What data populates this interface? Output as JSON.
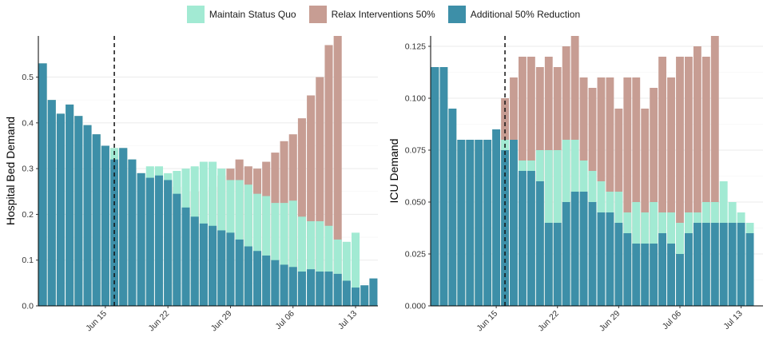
{
  "legend": [
    {
      "label": "Maintain Status Quo",
      "color": "#a2ead3"
    },
    {
      "label": "Relax Interventions 50%",
      "color": "#c79d93"
    },
    {
      "label": "Additional 50% Reduction",
      "color": "#3d8fa8"
    }
  ],
  "chart_data": [
    {
      "type": "bar",
      "ylabel": "Hospital Bed Demand",
      "ylim": [
        0,
        0.59
      ],
      "yticks": [
        0.0,
        0.1,
        0.2,
        0.3,
        0.4,
        0.5
      ],
      "ytick_labels": [
        "0.0",
        "0.1",
        "0.2",
        "0.3",
        "0.4",
        "0.5"
      ],
      "x_start": "Jun 08",
      "xticks": [
        {
          "index": 7,
          "label": "Jun 15"
        },
        {
          "index": 14,
          "label": "Jun 22"
        },
        {
          "index": 21,
          "label": "Jun 29"
        },
        {
          "index": 28,
          "label": "Jul 06"
        },
        {
          "index": 35,
          "label": "Jul 13"
        }
      ],
      "intervention_index": 8,
      "series": [
        {
          "name": "Relax Interventions 50%",
          "values": [
            0.53,
            0.45,
            0.42,
            0.44,
            0.415,
            0.395,
            0.375,
            0.35,
            0.345,
            0.345,
            0.32,
            0.29,
            0.28,
            0.285,
            0.275,
            0.26,
            0.25,
            0.25,
            0.25,
            0.26,
            0.285,
            0.3,
            0.32,
            0.305,
            0.3,
            0.315,
            0.335,
            0.36,
            0.375,
            0.41,
            0.46,
            0.5,
            0.57,
            0.59
          ]
        },
        {
          "name": "Maintain Status Quo",
          "values": [
            0.53,
            0.45,
            0.42,
            0.44,
            0.415,
            0.395,
            0.375,
            0.35,
            0.345,
            0.345,
            0.32,
            0.29,
            0.305,
            0.305,
            0.29,
            0.295,
            0.3,
            0.305,
            0.315,
            0.315,
            0.3,
            0.275,
            0.275,
            0.265,
            0.245,
            0.24,
            0.225,
            0.225,
            0.23,
            0.195,
            0.185,
            0.185,
            0.175,
            0.145,
            0.14,
            0.16
          ]
        },
        {
          "name": "Additional 50% Reduction",
          "values": [
            0.53,
            0.45,
            0.42,
            0.44,
            0.415,
            0.395,
            0.375,
            0.35,
            0.32,
            0.345,
            0.32,
            0.29,
            0.28,
            0.285,
            0.275,
            0.245,
            0.215,
            0.195,
            0.18,
            0.175,
            0.165,
            0.16,
            0.145,
            0.13,
            0.12,
            0.11,
            0.1,
            0.09,
            0.085,
            0.075,
            0.08,
            0.075,
            0.075,
            0.07,
            0.055,
            0.04,
            0.045,
            0.06
          ]
        }
      ]
    },
    {
      "type": "bar",
      "ylabel": "ICU Demand",
      "ylim": [
        0,
        0.13
      ],
      "yticks": [
        0.0,
        0.025,
        0.05,
        0.075,
        0.1,
        0.125
      ],
      "ytick_labels": [
        "0.000",
        "0.025",
        "0.050",
        "0.075",
        "0.100",
        "0.125"
      ],
      "x_start": "Jun 08",
      "xticks": [
        {
          "index": 7,
          "label": "Jun 15"
        },
        {
          "index": 14,
          "label": "Jun 22"
        },
        {
          "index": 21,
          "label": "Jun 29"
        },
        {
          "index": 28,
          "label": "Jul 06"
        },
        {
          "index": 35,
          "label": "Jul 13"
        }
      ],
      "intervention_index": 8,
      "series": [
        {
          "name": "Relax Interventions 50%",
          "values": [
            0.115,
            0.115,
            0.095,
            0.08,
            0.08,
            0.08,
            0.08,
            0.085,
            0.1,
            0.11,
            0.12,
            0.12,
            0.115,
            0.12,
            0.115,
            0.125,
            0.13,
            0.11,
            0.105,
            0.11,
            0.11,
            0.095,
            0.11,
            0.11,
            0.095,
            0.105,
            0.12,
            0.11,
            0.12,
            0.12,
            0.125,
            0.12,
            0.13
          ]
        },
        {
          "name": "Maintain Status Quo",
          "values": [
            0.115,
            0.115,
            0.095,
            0.08,
            0.08,
            0.08,
            0.08,
            0.085,
            0.08,
            0.08,
            0.07,
            0.07,
            0.075,
            0.075,
            0.075,
            0.08,
            0.08,
            0.07,
            0.065,
            0.06,
            0.055,
            0.055,
            0.045,
            0.05,
            0.045,
            0.05,
            0.045,
            0.045,
            0.04,
            0.045,
            0.045,
            0.05,
            0.05,
            0.06,
            0.05,
            0.045,
            0.04
          ]
        },
        {
          "name": "Additional 50% Reduction",
          "values": [
            0.115,
            0.115,
            0.095,
            0.08,
            0.08,
            0.08,
            0.08,
            0.085,
            0.075,
            0.08,
            0.065,
            0.065,
            0.06,
            0.04,
            0.04,
            0.05,
            0.055,
            0.055,
            0.05,
            0.045,
            0.045,
            0.04,
            0.035,
            0.03,
            0.03,
            0.03,
            0.035,
            0.03,
            0.025,
            0.035,
            0.04,
            0.04,
            0.04,
            0.04,
            0.04,
            0.04,
            0.035
          ]
        }
      ]
    }
  ]
}
